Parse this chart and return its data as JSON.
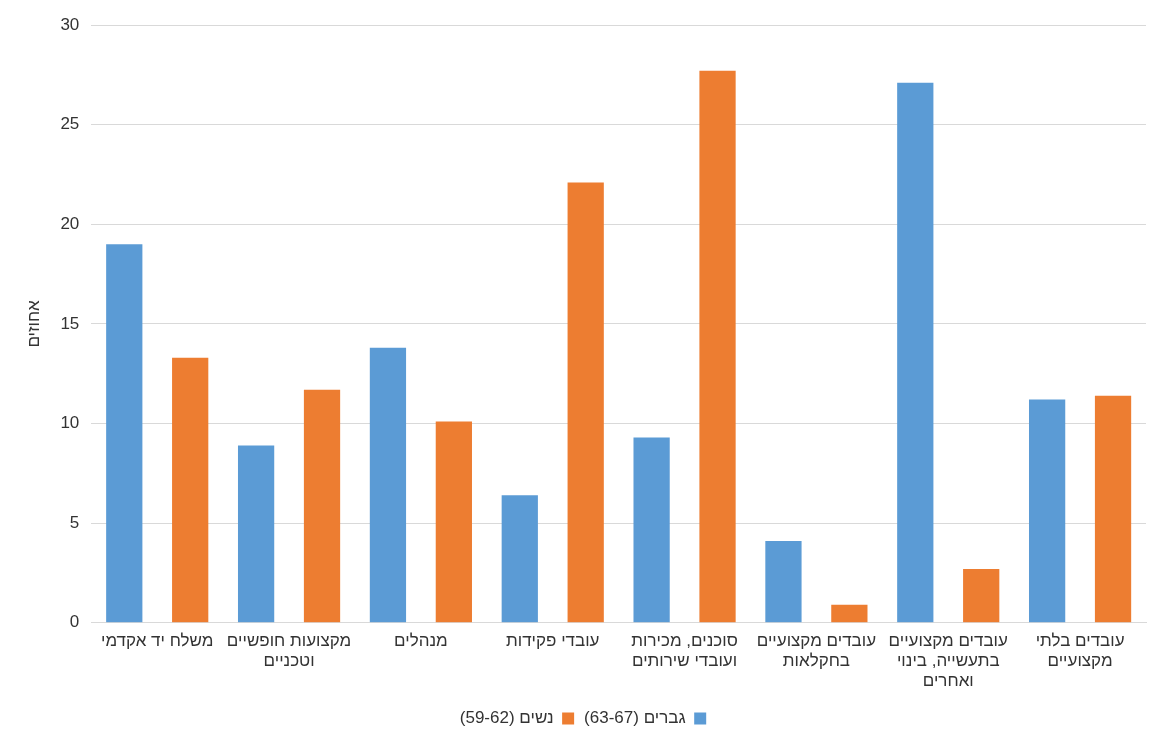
{
  "chart_data": {
    "type": "bar",
    "ylabel": "אחוזים",
    "categories": [
      "משלח יד אקדמי",
      "מקצועות חופשיים וטכניים",
      "מנהלים",
      "עובדי פקידות",
      "סוכנים, מכירות ועובדי שירותים",
      "עובדים מקצועיים בחקלאות",
      "עובדים מקצועיים בתעשייה, בינוי ואחרים",
      "עובדים בלתי מקצועיים"
    ],
    "series": [
      {
        "name": "גברים (63-67)",
        "color": "#5b9bd5",
        "values": [
          19.0,
          8.9,
          13.8,
          6.4,
          9.3,
          4.1,
          27.1,
          11.2
        ]
      },
      {
        "name": "נשים (59-62)",
        "color": "#ed7d31",
        "values": [
          13.3,
          11.7,
          10.1,
          22.1,
          27.7,
          0.9,
          2.7,
          11.4
        ]
      }
    ],
    "ylim": [
      0,
      30
    ],
    "yticks": [
      0,
      5,
      10,
      15,
      20,
      25,
      30
    ],
    "grid": "y",
    "legend": "bottom"
  }
}
